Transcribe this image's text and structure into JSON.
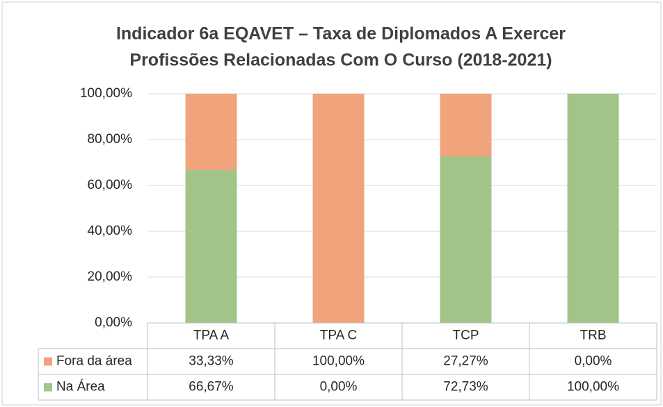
{
  "chart_data": {
    "type": "stacked_bar",
    "title": [
      "Indicador 6a EQAVET – Taxa de Diplomados A Exercer",
      "Profissões Relacionadas Com O Curso (2018-2021)"
    ],
    "categories": [
      "TPA A",
      "TPA C",
      "TCP",
      "TRB"
    ],
    "series": [
      {
        "name": "Fora da área",
        "color": "#f1a47c",
        "values": [
          33.33,
          100,
          27.27,
          0
        ],
        "value_labels": [
          "33,33%",
          "100,00%",
          "27,27%",
          "0,00%"
        ]
      },
      {
        "name": "Na Área",
        "color": "#a2c489",
        "values": [
          66.67,
          0,
          72.73,
          100
        ],
        "value_labels": [
          "66,67%",
          "0,00%",
          "72,73%",
          "100,00%"
        ]
      }
    ],
    "ylim": [
      0,
      100
    ],
    "yticks": [
      {
        "value": 0,
        "label": "0,00%"
      },
      {
        "value": 20,
        "label": "20,00%"
      },
      {
        "value": 40,
        "label": "40,00%"
      },
      {
        "value": 60,
        "label": "60,00%"
      },
      {
        "value": 80,
        "label": "80,00%"
      },
      {
        "value": 100,
        "label": "100,00%"
      }
    ],
    "grid": true
  }
}
